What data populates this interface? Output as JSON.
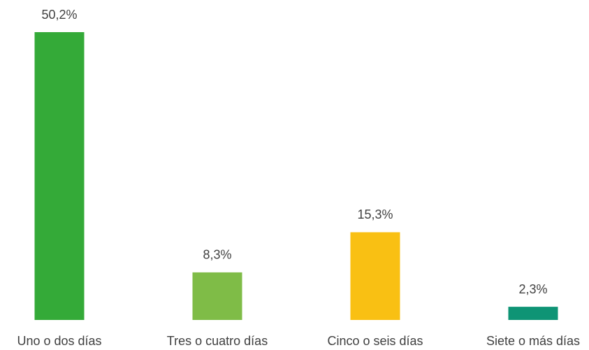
{
  "chart_data": {
    "type": "bar",
    "categories": [
      "Uno o dos días",
      "Tres o cuatro días",
      "Cinco o seis días",
      "Siete o más días"
    ],
    "values": [
      50.2,
      8.3,
      15.3,
      2.3
    ],
    "value_labels": [
      "50,2%",
      "8,3%",
      "15,3%",
      "2,3%"
    ],
    "colors": [
      "#34aa38",
      "#7fbc47",
      "#f9c013",
      "#0e9475"
    ]
  }
}
